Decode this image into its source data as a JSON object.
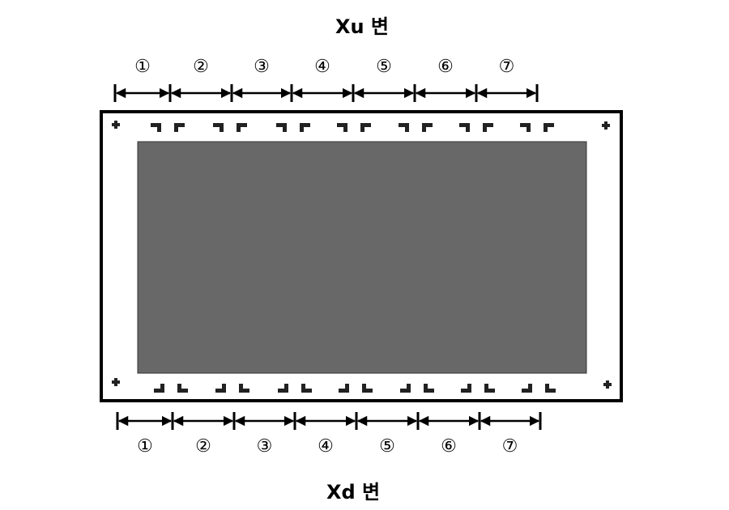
{
  "diagram": {
    "top_label": "Xu 변",
    "bottom_label": "Xd 변",
    "top_segments": [
      "①",
      "②",
      "③",
      "④",
      "⑤",
      "⑥",
      "⑦"
    ],
    "bottom_segments": [
      "①",
      "②",
      "③",
      "④",
      "⑤",
      "⑥",
      "⑦"
    ],
    "colors": {
      "panel_fill": "#686868",
      "frame_stroke": "#000000",
      "marker_fill": "#222222"
    }
  }
}
